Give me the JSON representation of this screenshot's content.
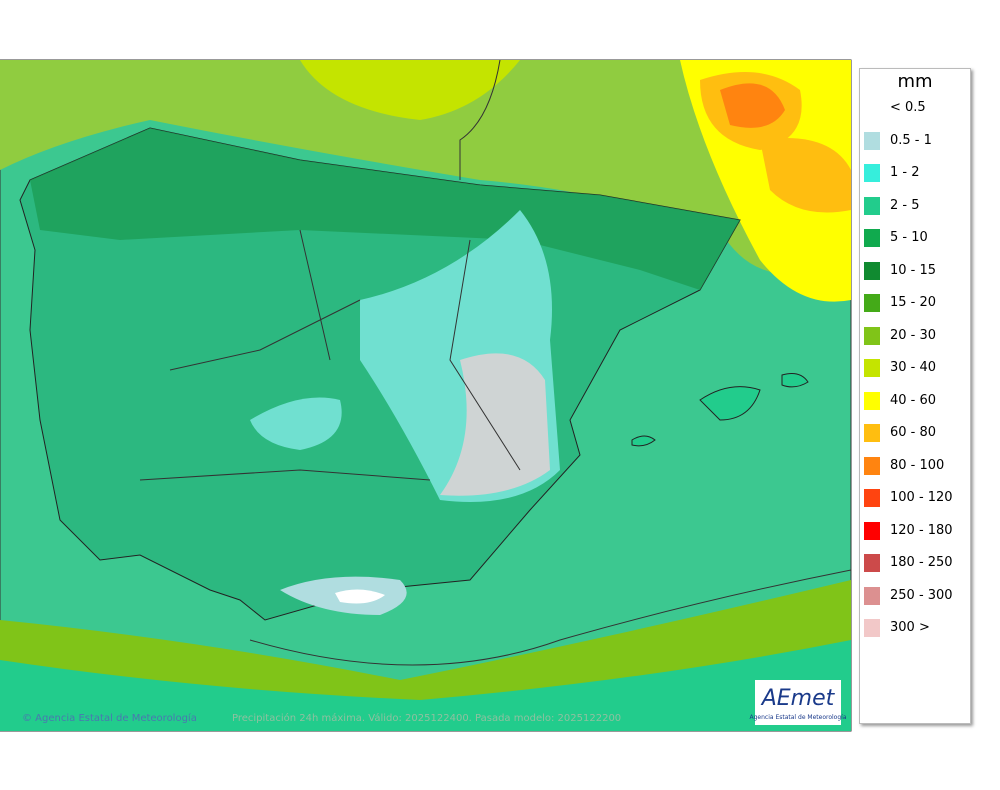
{
  "legend": {
    "title": "mm",
    "items": [
      {
        "label": "< 0.5",
        "color": null
      },
      {
        "label": "0.5 - 1",
        "color": "#b0dde0"
      },
      {
        "label": "1 - 2",
        "color": "#36eedc"
      },
      {
        "label": "2 - 5",
        "color": "#22cc8c"
      },
      {
        "label": "5 - 10",
        "color": "#10aa4e"
      },
      {
        "label": "10 - 15",
        "color": "#108a30"
      },
      {
        "label": "15 - 20",
        "color": "#44aa18"
      },
      {
        "label": "20 - 30",
        "color": "#80c418"
      },
      {
        "label": "30 - 40",
        "color": "#c4e400"
      },
      {
        "label": "40 - 60",
        "color": "#ffff00"
      },
      {
        "label": "60 - 80",
        "color": "#ffbe10"
      },
      {
        "label": "80 - 100",
        "color": "#ff8410"
      },
      {
        "label": "100 - 120",
        "color": "#ff4410"
      },
      {
        "label": "120 - 180",
        "color": "#ff0000"
      },
      {
        "label": "180 - 250",
        "color": "#cc4a4a"
      },
      {
        "label": "250 - 300",
        "color": "#dc9090"
      },
      {
        "label": "300 >",
        "color": "#f2c8c8"
      }
    ]
  },
  "footer": {
    "credit": "© Agencia Estatal de Meteorología",
    "product": "Precipitación 24h máxima. Válido: 2025122400. Pasada modelo: 2025122200"
  },
  "logo": {
    "name": "AEmet",
    "subtitle": "Agencia Estatal de Meteorología"
  }
}
